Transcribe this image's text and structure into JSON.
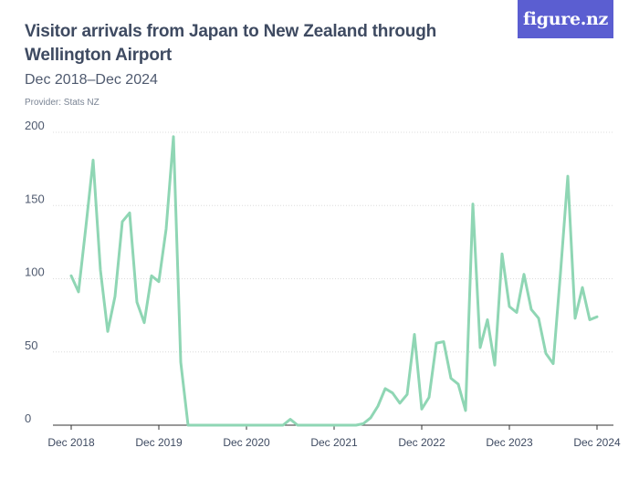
{
  "header": {
    "title": "Visitor arrivals from Japan to New Zealand through Wellington Airport",
    "subtitle": "Dec 2018–Dec 2024",
    "provider": "Provider: Stats NZ"
  },
  "logo": {
    "text": "figure.nz"
  },
  "colors": {
    "series": "#8fd6b4",
    "logo_bg": "#5b5ed1",
    "title": "#3e4a61"
  },
  "chart_data": {
    "type": "line",
    "title": "Visitor arrivals from Japan to New Zealand through Wellington Airport",
    "subtitle": "Dec 2018–Dec 2024",
    "xlabel": "",
    "ylabel": "",
    "ylim": [
      0,
      200
    ],
    "y_ticks": [
      0,
      50,
      100,
      150,
      200
    ],
    "x_tick_labels": [
      "Dec 2018",
      "Dec 2019",
      "Dec 2020",
      "Dec 2021",
      "Dec 2022",
      "Dec 2023",
      "Dec 2024"
    ],
    "grid": true,
    "series": [
      {
        "values": [
          102,
          91,
          135,
          181,
          106,
          64,
          88,
          139,
          145,
          84,
          70,
          102,
          98,
          134,
          197,
          43,
          0,
          0,
          0,
          0,
          0,
          0,
          0,
          0,
          0,
          0,
          0,
          0,
          0,
          0,
          4,
          0,
          0,
          0,
          0,
          0,
          0,
          0,
          0,
          0,
          1,
          5,
          13,
          25,
          22,
          15,
          21,
          62,
          11,
          19,
          56,
          57,
          32,
          28,
          10,
          151,
          53,
          72,
          41,
          117,
          81,
          77,
          103,
          79,
          73,
          49,
          42,
          104,
          170,
          73,
          94,
          72,
          74
        ]
      }
    ]
  }
}
